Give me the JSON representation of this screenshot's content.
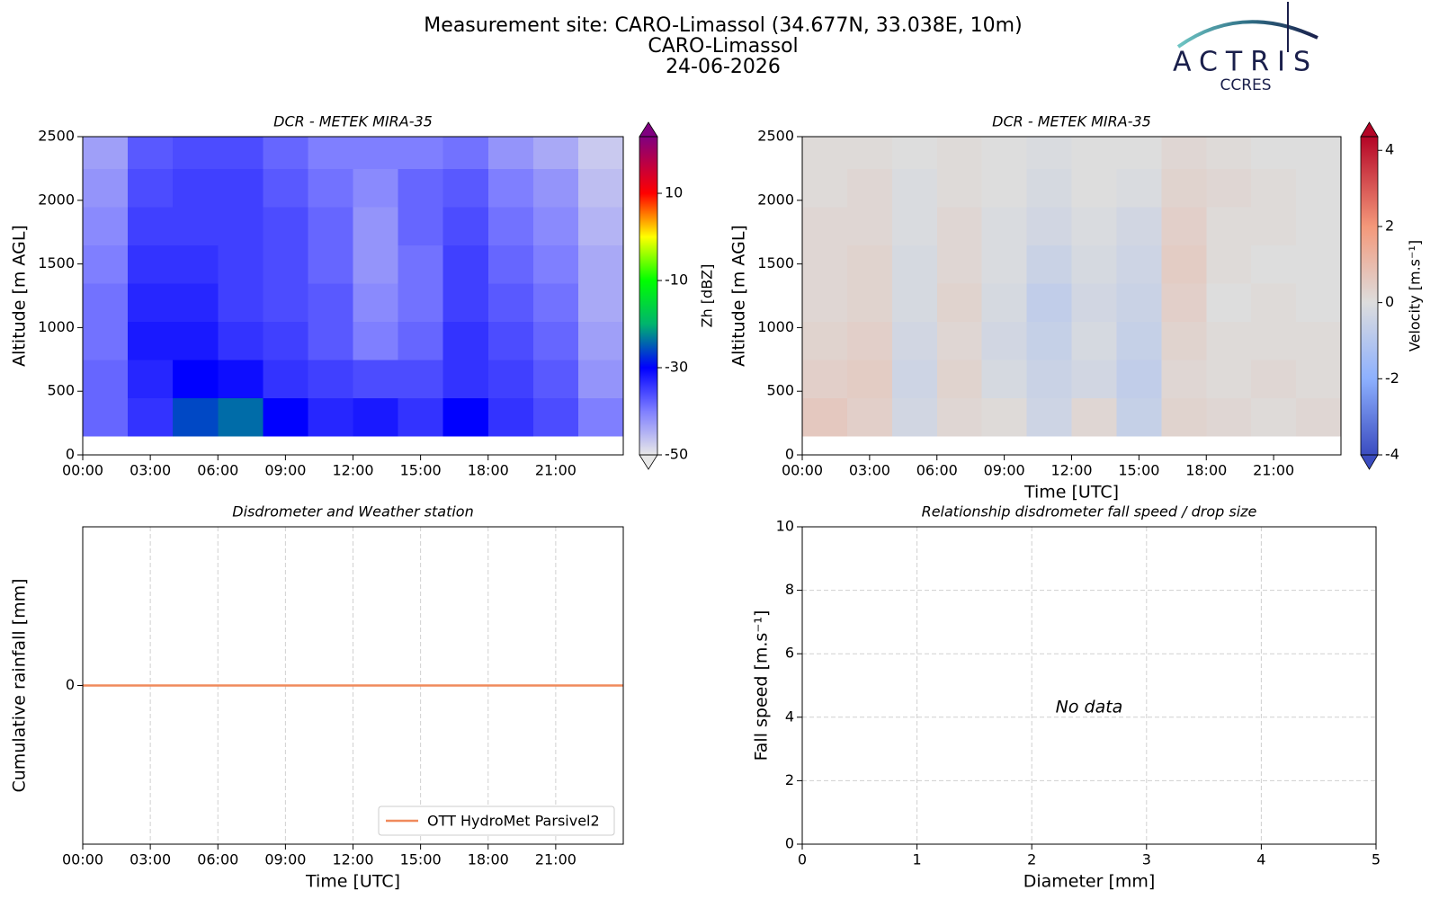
{
  "header": {
    "title": "Measurement site: CARO-Limassol (34.677N, 33.038E, 10m)",
    "site": "CARO-Limassol",
    "date": "24-06-2026"
  },
  "logo": {
    "name": "ACTRIS",
    "subtitle": "CCRES"
  },
  "chart_data": [
    {
      "type": "heatmap",
      "title": "DCR - METEK MIRA-35",
      "ylabel": "Altitude [m AGL]",
      "xlim": [
        0,
        24
      ],
      "xticks": [
        {
          "value": 0,
          "label": "00:00"
        },
        {
          "value": 3,
          "label": "03:00"
        },
        {
          "value": 6,
          "label": "06:00"
        },
        {
          "value": 9,
          "label": "09:00"
        },
        {
          "value": 12,
          "label": "12:00"
        },
        {
          "value": 15,
          "label": "15:00"
        },
        {
          "value": 18,
          "label": "18:00"
        },
        {
          "value": 21,
          "label": "21:00"
        }
      ],
      "ylim": [
        0,
        2500
      ],
      "yticks": [
        0,
        500,
        1000,
        1500,
        2000,
        2500
      ],
      "xbins": [
        0,
        2,
        4,
        6,
        8,
        10,
        12,
        14,
        16,
        18,
        20,
        22,
        24
      ],
      "ybins": [
        150,
        450,
        750,
        1050,
        1350,
        1650,
        1950,
        2250,
        2500
      ],
      "z": [
        [
          -38,
          -34,
          -26,
          -24,
          -30,
          -33,
          -32,
          -34,
          -30,
          -34,
          -36,
          -40
        ],
        [
          -38,
          -33,
          -30,
          -31,
          -34,
          -35,
          -36,
          -36,
          -34,
          -35,
          -37,
          -42
        ],
        [
          -39,
          -32,
          -32,
          -34,
          -35,
          -37,
          -40,
          -38,
          -34,
          -36,
          -38,
          -43
        ],
        [
          -39,
          -33,
          -33,
          -35,
          -36,
          -37,
          -41,
          -39,
          -35,
          -37,
          -39,
          -44
        ],
        [
          -40,
          -34,
          -34,
          -35,
          -36,
          -38,
          -42,
          -39,
          -35,
          -38,
          -40,
          -44
        ],
        [
          -41,
          -35,
          -35,
          -35,
          -36,
          -38,
          -42,
          -38,
          -36,
          -39,
          -41,
          -45
        ],
        [
          -42,
          -36,
          -35,
          -35,
          -37,
          -39,
          -41,
          -38,
          -37,
          -40,
          -42,
          -46
        ],
        [
          -43,
          -37,
          -36,
          -36,
          -38,
          -40,
          -40,
          -40,
          -39,
          -42,
          -44,
          -47
        ]
      ],
      "clim": [
        -50,
        23
      ],
      "cbticks": [
        -50,
        -30,
        -10,
        10
      ],
      "cblabel": "Zh [dBZ]",
      "colormap": [
        [
          -50,
          "#e8e8e8"
        ],
        [
          -40,
          "#7f7fff"
        ],
        [
          -30,
          "#0000ff"
        ],
        [
          -20,
          "#00b46e"
        ],
        [
          -10,
          "#00ff00"
        ],
        [
          0,
          "#ffff00"
        ],
        [
          10,
          "#ff0000"
        ],
        [
          23,
          "#800080"
        ]
      ],
      "grid": false
    },
    {
      "type": "heatmap",
      "title": "DCR - METEK MIRA-35",
      "ylabel": "Altitude [m AGL]",
      "xlabel": "Time [UTC]",
      "xlim": [
        0,
        24
      ],
      "xticks": [
        {
          "value": 0,
          "label": "00:00"
        },
        {
          "value": 3,
          "label": "03:00"
        },
        {
          "value": 6,
          "label": "06:00"
        },
        {
          "value": 9,
          "label": "09:00"
        },
        {
          "value": 12,
          "label": "12:00"
        },
        {
          "value": 15,
          "label": "15:00"
        },
        {
          "value": 18,
          "label": "18:00"
        },
        {
          "value": 21,
          "label": "21:00"
        }
      ],
      "ylim": [
        0,
        2500
      ],
      "yticks": [
        0,
        500,
        1000,
        1500,
        2000,
        2500
      ],
      "xbins": [
        0,
        2,
        4,
        6,
        8,
        10,
        12,
        14,
        16,
        18,
        20,
        22,
        24
      ],
      "ybins": [
        150,
        450,
        750,
        1050,
        1350,
        1650,
        1950,
        2250,
        2500
      ],
      "z": [
        [
          0.6,
          0.4,
          -0.3,
          0.2,
          0.1,
          -0.4,
          0.2,
          -0.6,
          0.3,
          0.2,
          0.1,
          0.2
        ],
        [
          0.4,
          0.5,
          -0.4,
          0.3,
          -0.2,
          -0.5,
          -0.3,
          -0.7,
          0.2,
          0.1,
          0.2,
          0.1
        ],
        [
          0.3,
          0.4,
          -0.3,
          0.2,
          -0.3,
          -0.6,
          -0.2,
          -0.6,
          0.3,
          0.1,
          0.1,
          0.1
        ],
        [
          0.2,
          0.3,
          -0.2,
          0.3,
          -0.2,
          -0.7,
          -0.3,
          -0.5,
          0.4,
          0.0,
          0.1,
          0.0
        ],
        [
          0.2,
          0.3,
          -0.2,
          0.2,
          -0.1,
          -0.5,
          -0.2,
          -0.4,
          0.5,
          0.1,
          0.0,
          0.0
        ],
        [
          0.2,
          0.2,
          -0.1,
          0.2,
          -0.1,
          -0.3,
          -0.1,
          -0.3,
          0.4,
          0.1,
          0.1,
          0.0
        ],
        [
          0.1,
          0.2,
          -0.1,
          0.1,
          0.0,
          -0.2,
          0.0,
          -0.1,
          0.3,
          0.2,
          0.1,
          0.0
        ],
        [
          0.1,
          0.1,
          0.0,
          0.1,
          0.0,
          -0.1,
          0.0,
          0.0,
          0.2,
          0.1,
          0.0,
          0.0
        ]
      ],
      "clim": [
        -4,
        4.36
      ],
      "cbticks": [
        -4,
        -2,
        0,
        2,
        4
      ],
      "cblabel": "Velocity [m.s⁻¹]",
      "colormap": [
        [
          -4,
          "#3b4cc0"
        ],
        [
          -2,
          "#8db0fe"
        ],
        [
          0,
          "#dddddd"
        ],
        [
          2,
          "#f4987a"
        ],
        [
          4.36,
          "#b40426"
        ]
      ],
      "grid": false
    },
    {
      "type": "line",
      "title": "Disdrometer and Weather station",
      "ylabel": "Cumulative rainfall [mm]",
      "xlabel": "Time [UTC]",
      "xlim": [
        0,
        24
      ],
      "xticks": [
        {
          "value": 0,
          "label": "00:00"
        },
        {
          "value": 3,
          "label": "03:00"
        },
        {
          "value": 6,
          "label": "06:00"
        },
        {
          "value": 9,
          "label": "09:00"
        },
        {
          "value": 12,
          "label": "12:00"
        },
        {
          "value": 15,
          "label": "15:00"
        },
        {
          "value": 18,
          "label": "18:00"
        },
        {
          "value": 21,
          "label": "21:00"
        }
      ],
      "ylim": [
        -0.055,
        0.055
      ],
      "yticks": [
        0
      ],
      "x": [
        0,
        24
      ],
      "series": [
        {
          "name": "OTT HydroMet Parsivel2",
          "color": "#f08a5c",
          "values": [
            0,
            0
          ]
        }
      ],
      "legend": "lower right",
      "grid": true
    },
    {
      "type": "scatter",
      "title": "Relationship disdrometer fall speed / drop size",
      "ylabel": "Fall speed [m.s⁻¹]",
      "xlabel": "Diameter [mm]",
      "xlim": [
        0,
        5
      ],
      "xticks": [
        0,
        1,
        2,
        3,
        4,
        5
      ],
      "ylim": [
        0,
        10
      ],
      "yticks": [
        0,
        2,
        4,
        6,
        8,
        10
      ],
      "annotation": "No data",
      "grid": true
    }
  ]
}
